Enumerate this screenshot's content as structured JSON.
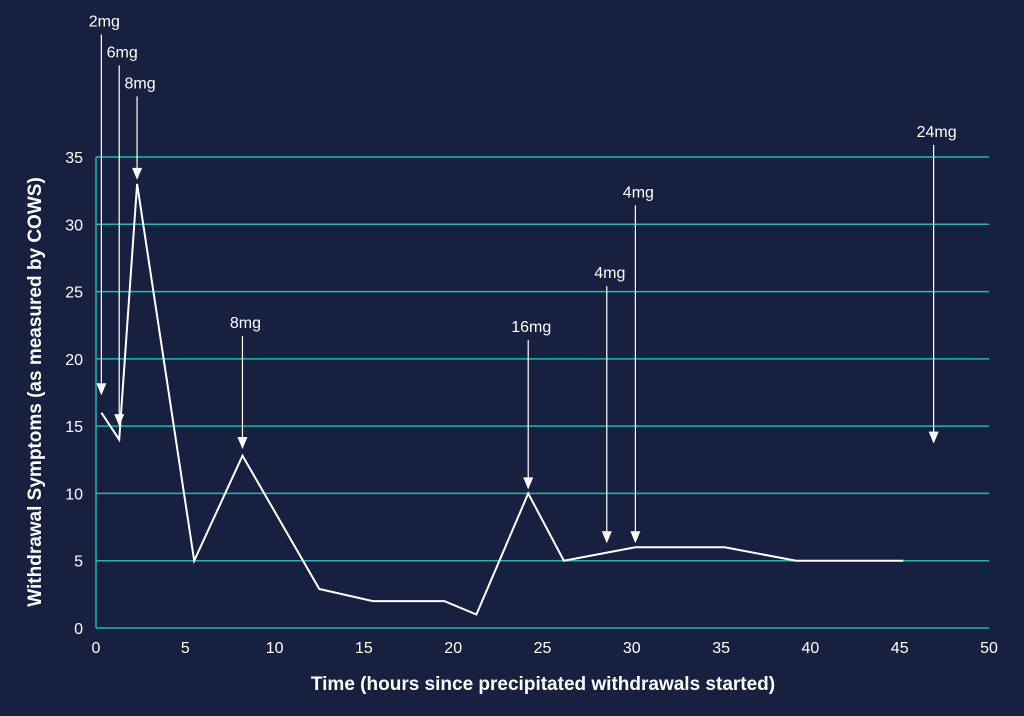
{
  "chart_data": {
    "type": "line",
    "title": "",
    "xlabel": "Time (hours since precipitated withdrawals started)",
    "ylabel": "Withdrawal Symptoms (as measured by COWS)",
    "xlim": [
      0,
      50
    ],
    "ylim": [
      0,
      35
    ],
    "x_ticks": [
      "0",
      "5",
      "10",
      "15",
      "20",
      "25",
      "30",
      "35",
      "40",
      "45",
      "50"
    ],
    "y_ticks": [
      "0",
      "5",
      "10",
      "15",
      "20",
      "25",
      "30",
      "35"
    ],
    "grid": "horizontal",
    "colors": {
      "background": "#182040",
      "grid": "#1fb8b0",
      "line": "#ffffff",
      "text": "#ffffff"
    },
    "series": [
      {
        "points": [
          [
            0.3,
            16
          ],
          [
            1.3,
            14
          ],
          [
            2.3,
            33
          ],
          [
            5.5,
            5
          ],
          [
            8.2,
            12.8
          ],
          [
            12.5,
            2.9
          ],
          [
            15.5,
            2
          ],
          [
            19.5,
            2
          ],
          [
            21.3,
            1
          ],
          [
            24.2,
            10
          ],
          [
            26.2,
            5
          ],
          [
            30.2,
            6
          ],
          [
            35.2,
            6
          ],
          [
            39.2,
            5
          ],
          [
            45.2,
            5
          ]
        ]
      }
    ],
    "annotations": [
      {
        "label": "2mg",
        "x": 0.3,
        "y": 17.3,
        "label_y": 44.7
      },
      {
        "label": "6mg",
        "x": 1.3,
        "y": 15.0,
        "label_y": 42.4
      },
      {
        "label": "8mg",
        "x": 2.3,
        "y": 33.3,
        "label_y": 40.1
      },
      {
        "label": "8mg",
        "x": 8.2,
        "y": 13.3,
        "label_y": 22.3
      },
      {
        "label": "16mg",
        "x": 24.2,
        "y": 10.3,
        "label_y": 22.0
      },
      {
        "label": "4mg",
        "x": 28.6,
        "y": 6.3,
        "label_y": 26.0
      },
      {
        "label": "4mg",
        "x": 30.2,
        "y": 6.3,
        "label_y": 32.0
      },
      {
        "label": "24mg",
        "x": 46.9,
        "y": 13.7,
        "label_y": 36.5
      }
    ]
  }
}
